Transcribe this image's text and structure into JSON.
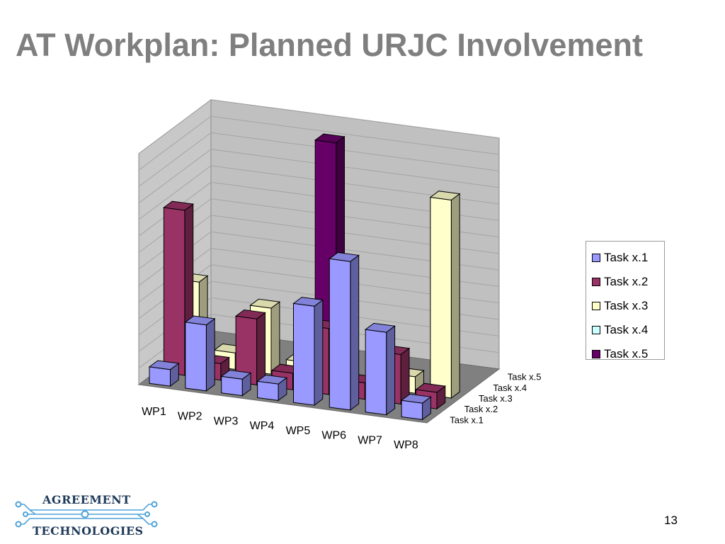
{
  "slide": {
    "title": "AT Workplan: Planned URJC Involvement",
    "page_number": "13",
    "logo": {
      "line1": "AGREEMENT",
      "line2": "TECHNOLOGIES"
    }
  },
  "chart_data": {
    "type": "bar",
    "subtype": "3d-column",
    "title": "",
    "categories": [
      "WP1",
      "WP2",
      "WP3",
      "WP4",
      "WP5",
      "WP6",
      "WP7",
      "WP8"
    ],
    "depth_categories": [
      "Task x.1",
      "Task x.2",
      "Task x.3",
      "Task x.4",
      "Task x.5"
    ],
    "series": [
      {
        "name": "Task x.1",
        "color": "#9999ff",
        "values": [
          1,
          4,
          1,
          1,
          6,
          9,
          5,
          1
        ]
      },
      {
        "name": "Task x.2",
        "color": "#993366",
        "values": [
          10,
          1,
          4,
          1,
          4,
          1,
          3,
          1
        ]
      },
      {
        "name": "Task x.3",
        "color": "#ffffcc",
        "values": [
          5,
          1,
          4,
          1,
          0,
          0,
          1,
          12
        ]
      },
      {
        "name": "Task x.4",
        "color": "#ccffff",
        "values": [
          0,
          0,
          0,
          1,
          0,
          0,
          0,
          0
        ]
      },
      {
        "name": "Task x.5",
        "color": "#660066",
        "values": [
          0,
          0,
          0,
          13,
          0,
          0,
          0,
          0
        ]
      }
    ],
    "ylim": [
      0,
      14
    ],
    "grid": true,
    "legend_position": "right"
  }
}
